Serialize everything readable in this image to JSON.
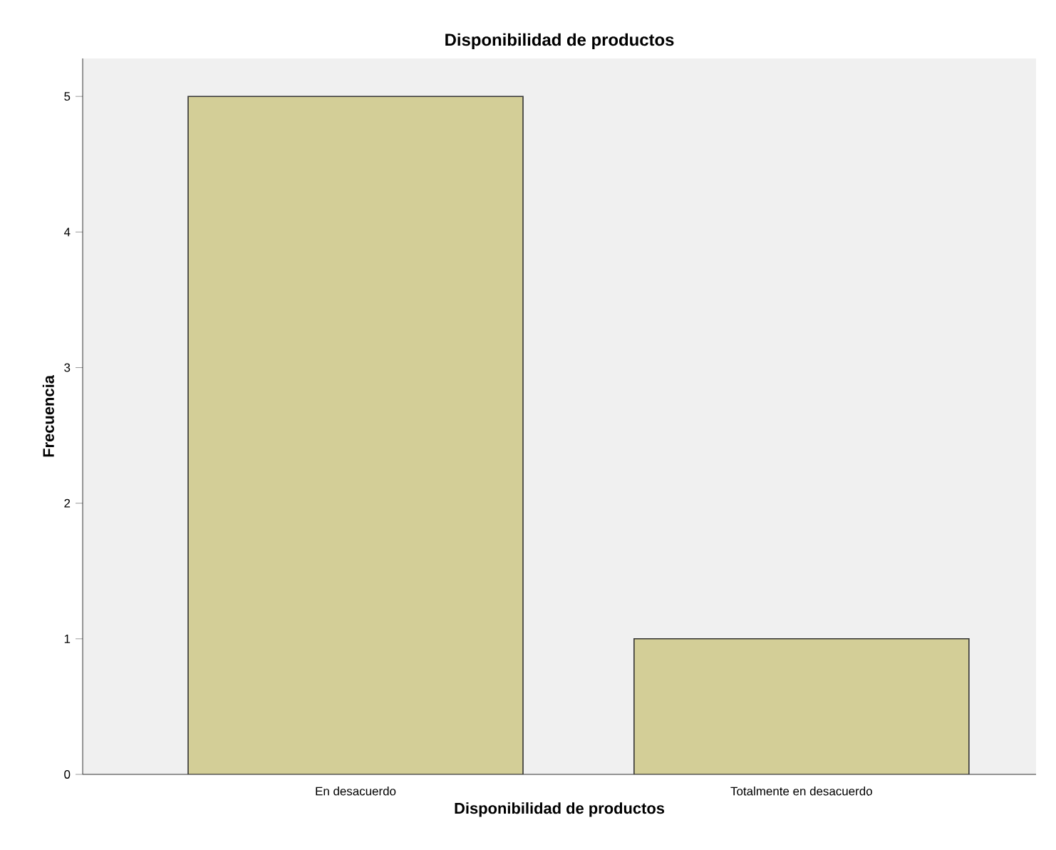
{
  "chart_data": {
    "type": "bar",
    "title": "Disponibilidad de productos",
    "xlabel": "Disponibilidad de productos",
    "ylabel": "Frecuencia",
    "categories": [
      "En desacuerdo",
      "Totalmente en desacuerdo"
    ],
    "values": [
      5,
      1
    ],
    "color": "#d3ce97",
    "ylim": [
      0,
      5.28
    ],
    "yticks": [
      0,
      1,
      2,
      3,
      4,
      5
    ],
    "grid": false
  }
}
